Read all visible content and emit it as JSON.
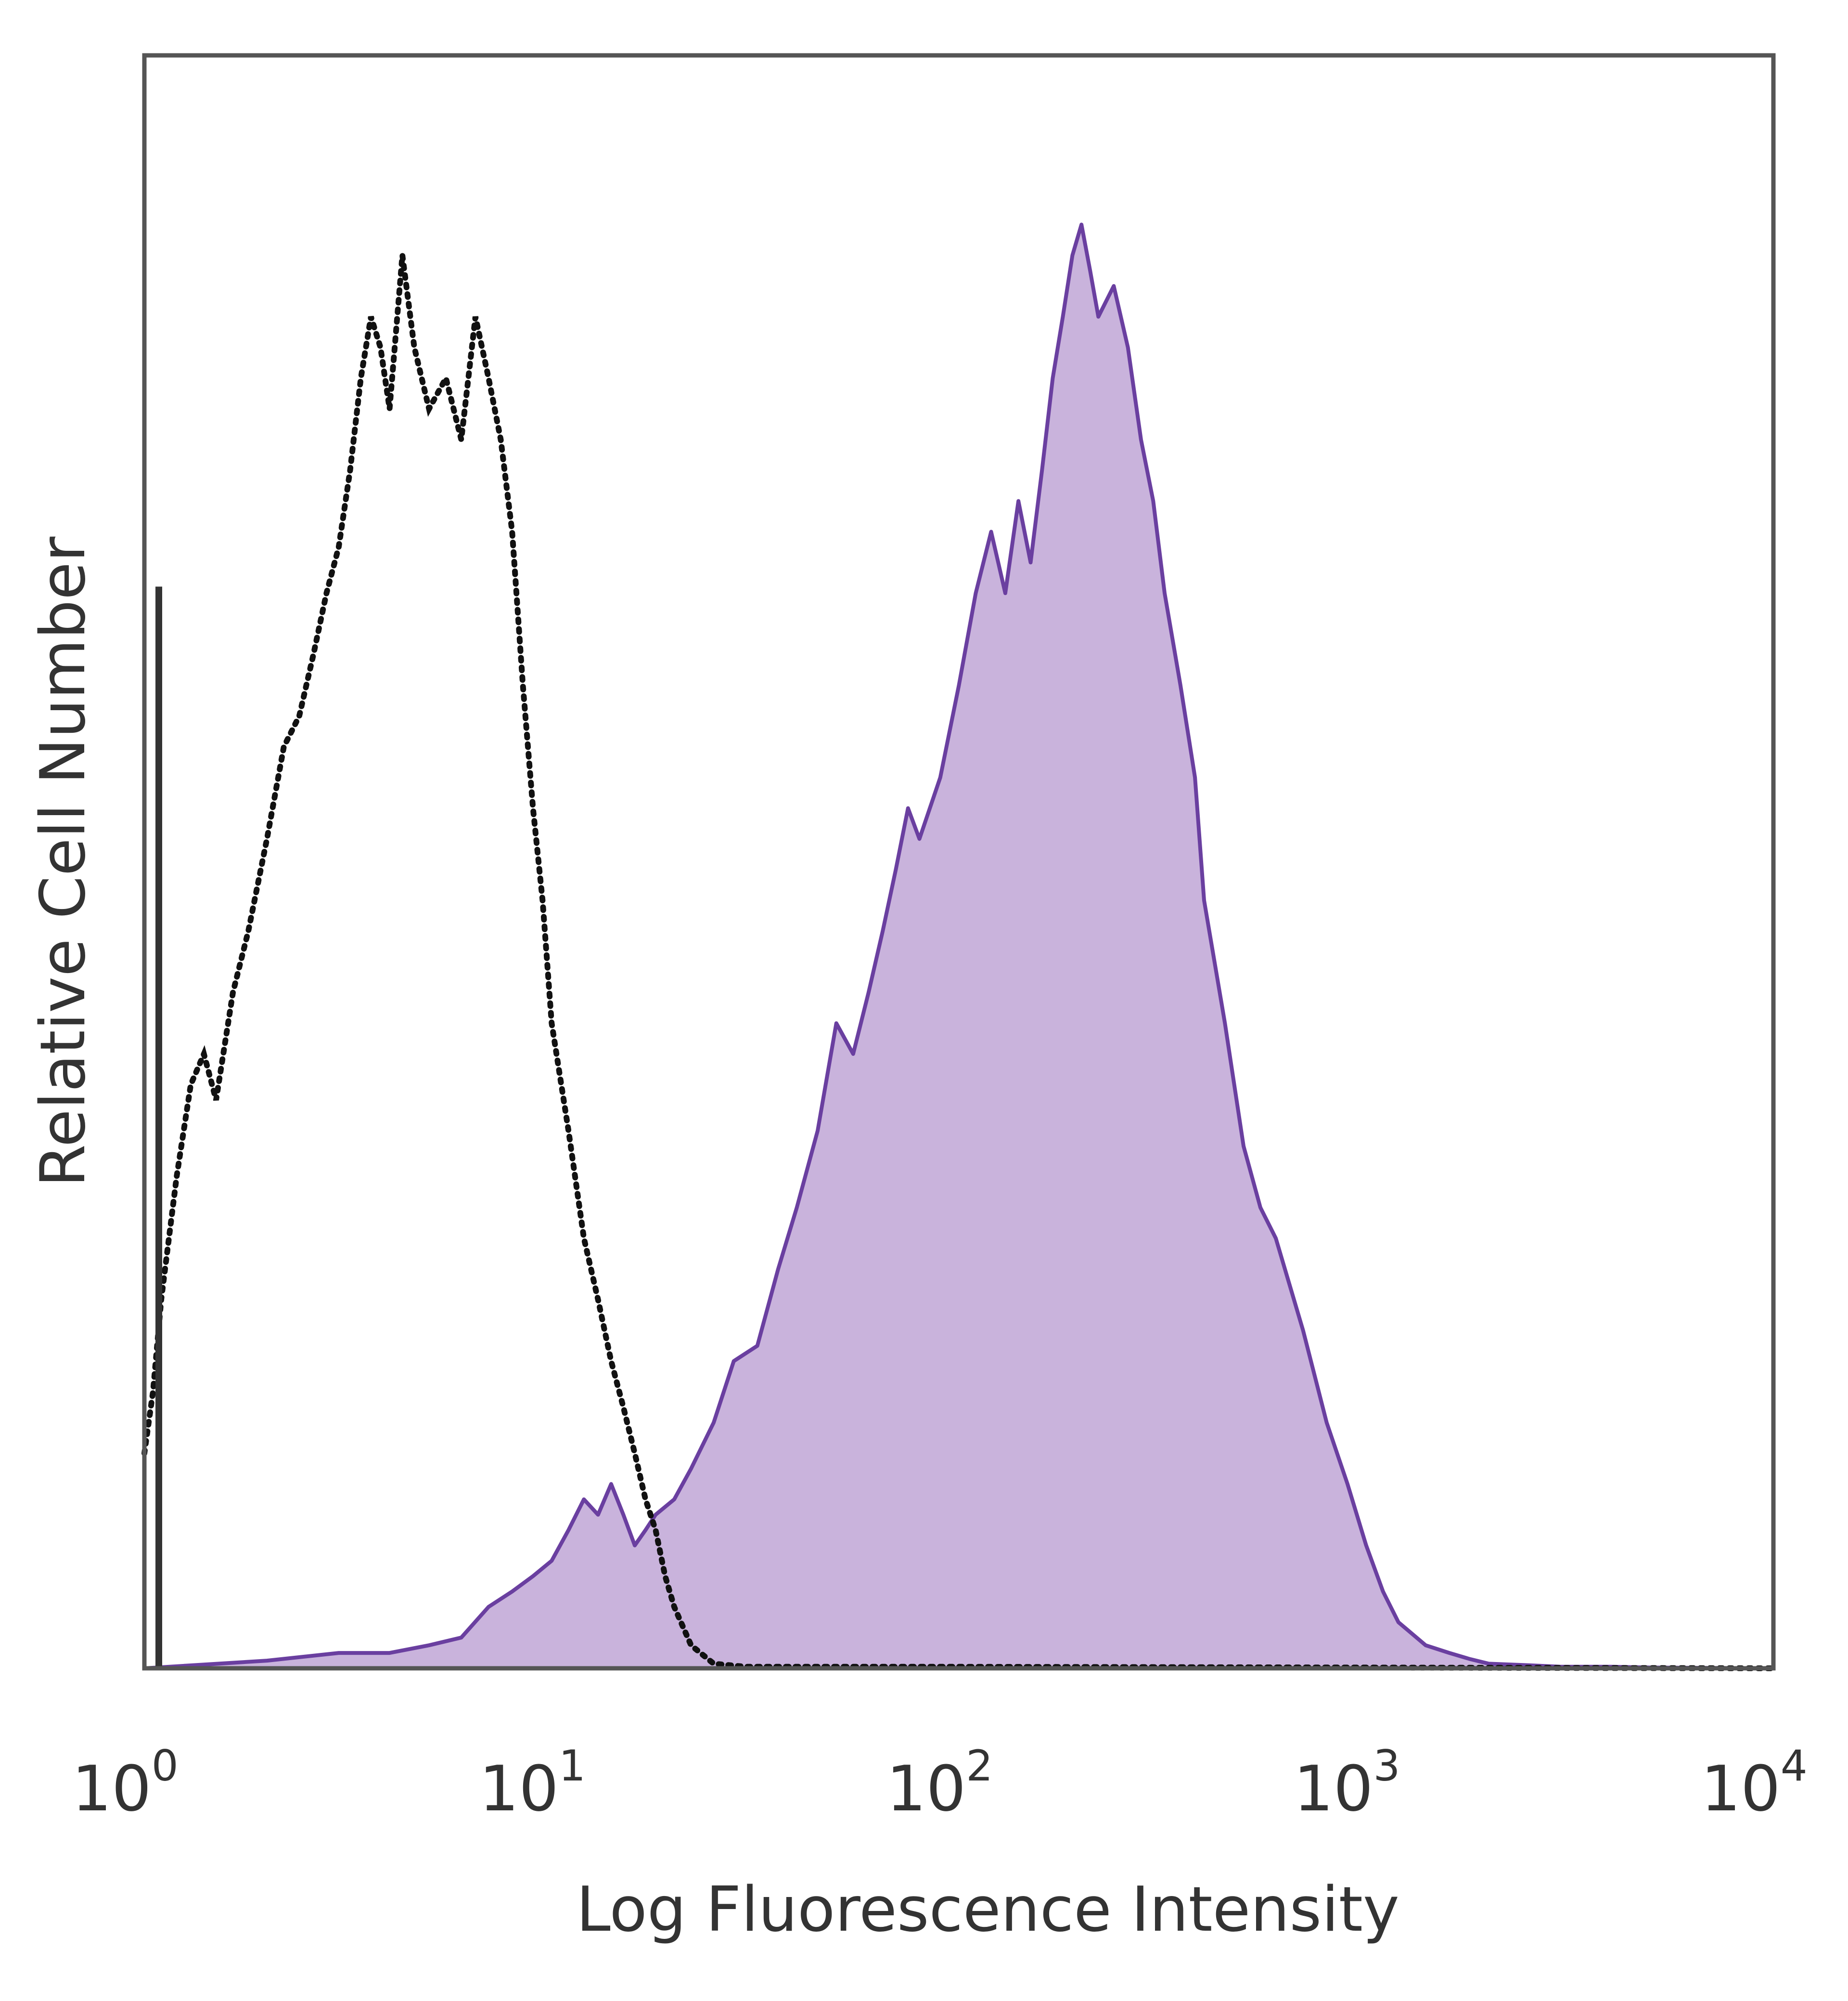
{
  "chart_data": {
    "type": "area",
    "title": "",
    "xlabel": "Log Fluorescence Intensity",
    "ylabel": "Relative Cell Number",
    "x_scale": "log",
    "xlim": [
      1,
      10000
    ],
    "ylim": [
      0,
      100
    ],
    "grid": false,
    "legend": "none",
    "x_ticks": [
      {
        "base": "10",
        "exp": "0"
      },
      {
        "base": "10",
        "exp": "1"
      },
      {
        "base": "10",
        "exp": "2"
      },
      {
        "base": "10",
        "exp": "3"
      },
      {
        "base": "10",
        "exp": "4"
      }
    ],
    "series": [
      {
        "style": "dotted-outline",
        "color": "#111111",
        "x": [
          1.0,
          1.05,
          1.1,
          1.2,
          1.3,
          1.4,
          1.5,
          1.65,
          1.8,
          2.0,
          2.2,
          2.4,
          2.6,
          2.8,
          3.0,
          3.2,
          3.4,
          3.6,
          3.8,
          4.0,
          4.3,
          4.6,
          5.0,
          5.5,
          6.0,
          6.5,
          7.0,
          7.5,
          8.0,
          8.5,
          9.0,
          9.5,
          10.0,
          11.0,
          12.0,
          13.0,
          14.0,
          15.0,
          16.0,
          17.0,
          18.0,
          19.0,
          20.0,
          22.0,
          25.0,
          30.0,
          100.0,
          10000.0
        ],
        "values": [
          14.0,
          18.0,
          24.0,
          32.0,
          38.0,
          40.0,
          37.0,
          44.0,
          48.0,
          54.0,
          60.0,
          62.0,
          66.0,
          70.0,
          73.0,
          78.0,
          84.0,
          88.0,
          86.0,
          82.0,
          92.0,
          86.0,
          82.0,
          84.0,
          80.0,
          88.0,
          84.0,
          80.0,
          74.0,
          64.0,
          56.0,
          50.0,
          42.0,
          35.0,
          28.0,
          24.0,
          20.0,
          17.0,
          14.0,
          11.0,
          9.0,
          6.0,
          4.0,
          1.5,
          0.3,
          0.1,
          0.1,
          0.0
        ]
      },
      {
        "style": "filled",
        "color": "#6a3fa0",
        "fill": "#c9b3dc",
        "x": [
          1.0,
          2.0,
          3.0,
          4.0,
          5.0,
          6.0,
          7.0,
          8.0,
          9.0,
          10.0,
          11.0,
          12.0,
          13.0,
          14.0,
          15.0,
          16.0,
          17.0,
          18.0,
          20.0,
          22.0,
          25.0,
          28.0,
          32.0,
          36.0,
          40.0,
          45.0,
          50.0,
          55.0,
          60.0,
          65.0,
          70.0,
          75.0,
          80.0,
          90.0,
          100.0,
          110.0,
          120.0,
          130.0,
          140.0,
          150.0,
          160.0,
          170.0,
          180.0,
          190.0,
          200.0,
          210.0,
          220.0,
          240.0,
          260.0,
          280.0,
          300.0,
          320.0,
          350.0,
          380.0,
          400.0,
          450.0,
          500.0,
          550.0,
          600.0,
          700.0,
          800.0,
          900.0,
          1000.0,
          1100.0,
          1200.0,
          1400.0,
          1600.0,
          1800.0,
          2000.0,
          2500.0,
          3000.0,
          4000.0,
          5000.0,
          10000.0
        ],
        "values": [
          0.0,
          0.5,
          1.0,
          1.0,
          1.5,
          2.0,
          4.0,
          5.0,
          6.0,
          7.0,
          9.0,
          11.0,
          10.0,
          12.0,
          10.0,
          8.0,
          9.0,
          10.0,
          11.0,
          13.0,
          16.0,
          20.0,
          21.0,
          26.0,
          30.0,
          35.0,
          42.0,
          40.0,
          44.0,
          48.0,
          52.0,
          56.0,
          54.0,
          58.0,
          64.0,
          70.0,
          74.0,
          70.0,
          76.0,
          72.0,
          78.0,
          84.0,
          88.0,
          92.0,
          94.0,
          91.0,
          88.0,
          90.0,
          86.0,
          80.0,
          76.0,
          70.0,
          64.0,
          58.0,
          50.0,
          42.0,
          34.0,
          30.0,
          28.0,
          22.0,
          16.0,
          12.0,
          8.0,
          5.0,
          3.0,
          1.5,
          1.0,
          0.6,
          0.3,
          0.2,
          0.1,
          0.1,
          0.05,
          0.0
        ]
      }
    ]
  }
}
